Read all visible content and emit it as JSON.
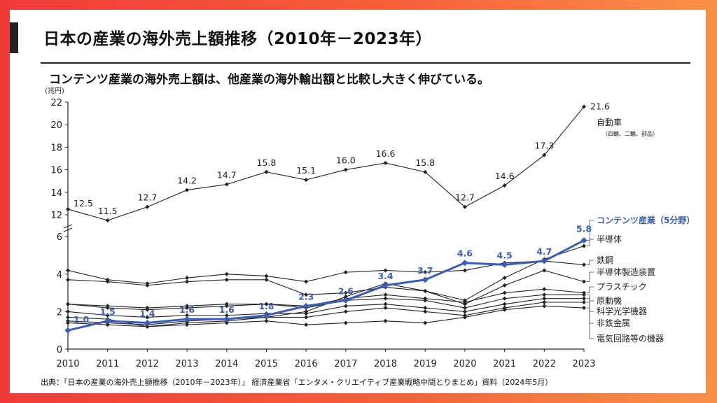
{
  "header": {
    "title": "日本の産業の海外売上額推移（2010年－2023年）",
    "subtitle": "コンテンツ産業の海外売上額は、他産業の海外輸出額と比較し大きく伸びている。"
  },
  "footer": {
    "source": "出典：「日本の産業の海外売上額推移（2010年－2023年）」 経済産業省「エンタメ・クリエイティブ産業戦略中間とりまとめ」資料（2024年5月）"
  },
  "chart_data": {
    "type": "line",
    "y_unit": "(兆円)",
    "x": [
      "2010",
      "2011",
      "2012",
      "2013",
      "2014",
      "2015",
      "2016",
      "2017",
      "2018",
      "2019",
      "2020",
      "2021",
      "2022",
      "2023"
    ],
    "y_ticks_lower": [
      "0",
      "2",
      "4",
      "6"
    ],
    "y_ticks_upper": [
      "12",
      "14",
      "16",
      "18",
      "20",
      "22"
    ],
    "axis_break": true,
    "grid": false,
    "series": [
      {
        "name": "自動車",
        "note": "（四輪、二輪、部品）",
        "color": "#222222",
        "highlight": false,
        "values": [
          12.5,
          11.5,
          12.7,
          14.2,
          14.7,
          15.8,
          15.1,
          16.0,
          16.6,
          15.8,
          12.7,
          14.6,
          17.3,
          21.6
        ],
        "labels": [
          "12.5",
          "11.5",
          "12.7",
          "14.2",
          "14.7",
          "15.8",
          "15.1",
          "16.0",
          "16.6",
          "15.8",
          "12.7",
          "14.6",
          "17.3",
          "21.6"
        ]
      },
      {
        "name": "コンテンツ産業（5分野）",
        "color": "#3b5cb8",
        "highlight": true,
        "values": [
          1.0,
          1.5,
          1.4,
          1.6,
          1.6,
          1.8,
          2.3,
          2.6,
          3.4,
          3.7,
          4.6,
          4.5,
          4.7,
          5.8
        ],
        "labels": [
          "1.0",
          "1.5",
          "1.4",
          "1.6",
          "1.6",
          "1.8",
          "2.3",
          "2.6",
          "3.4",
          "3.7",
          "4.6",
          "4.5",
          "4.7",
          "5.8"
        ]
      },
      {
        "name": "半導体",
        "color": "#222222",
        "highlight": false,
        "values": [
          3.7,
          3.6,
          3.4,
          3.6,
          3.7,
          3.7,
          2.9,
          3.0,
          3.3,
          3.1,
          2.6,
          3.8,
          4.8,
          5.5
        ]
      },
      {
        "name": "鉄鋼",
        "color": "#222222",
        "highlight": false,
        "values": [
          4.2,
          3.7,
          3.5,
          3.8,
          4.0,
          3.9,
          3.6,
          4.1,
          4.2,
          4.1,
          4.2,
          4.6,
          4.7,
          4.5
        ]
      },
      {
        "name": "半導体製造装置",
        "color": "#222222",
        "highlight": false,
        "values": [
          1.7,
          1.6,
          1.2,
          1.4,
          1.5,
          1.7,
          2.0,
          2.8,
          3.5,
          3.1,
          2.4,
          3.4,
          4.2,
          3.6
        ]
      },
      {
        "name": "プラスチック",
        "color": "#222222",
        "highlight": false,
        "values": [
          2.4,
          2.3,
          2.2,
          2.3,
          2.4,
          2.4,
          2.3,
          2.7,
          2.9,
          2.7,
          2.5,
          3.0,
          3.2,
          3.0
        ]
      },
      {
        "name": "原動機",
        "color": "#222222",
        "highlight": false,
        "values": [
          2.4,
          2.2,
          2.1,
          2.2,
          2.3,
          2.4,
          2.2,
          2.6,
          2.7,
          2.6,
          2.2,
          2.7,
          2.9,
          2.9
        ]
      },
      {
        "name": "科学光学機器",
        "color": "#222222",
        "highlight": false,
        "values": [
          2.0,
          1.8,
          1.7,
          1.8,
          1.8,
          1.9,
          1.9,
          2.3,
          2.4,
          2.2,
          2.0,
          2.4,
          2.7,
          2.7
        ]
      },
      {
        "name": "非鉄金属",
        "color": "#222222",
        "highlight": false,
        "values": [
          1.5,
          1.4,
          1.3,
          1.5,
          1.6,
          1.7,
          1.7,
          2.0,
          2.2,
          2.0,
          1.8,
          2.2,
          2.5,
          2.5
        ]
      },
      {
        "name": "電気回路等の機器",
        "color": "#222222",
        "highlight": false,
        "values": [
          1.4,
          1.3,
          1.2,
          1.3,
          1.4,
          1.5,
          1.3,
          1.4,
          1.5,
          1.4,
          1.7,
          2.1,
          2.3,
          2.2
        ]
      }
    ]
  }
}
